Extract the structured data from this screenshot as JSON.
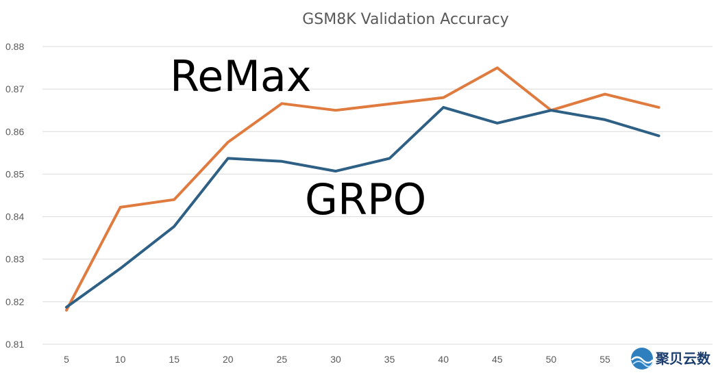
{
  "chart_data": {
    "type": "line",
    "title": "GSM8K Validation Accuracy",
    "xlabel": "",
    "ylabel": "",
    "x": [
      5,
      10,
      15,
      20,
      25,
      30,
      35,
      40,
      45,
      50,
      55,
      60
    ],
    "x_tick_labels": [
      "5",
      "10",
      "15",
      "20",
      "25",
      "30",
      "35",
      "40",
      "45",
      "50",
      "55"
    ],
    "y_tick_labels": [
      "0.81",
      "0.82",
      "0.83",
      "0.84",
      "0.85",
      "0.86",
      "0.87",
      "0.88"
    ],
    "ylim": [
      0.81,
      0.88
    ],
    "grid": "horizontal",
    "legend": "none",
    "series": [
      {
        "name": "ReMax",
        "color": "#e07b3f",
        "values": [
          0.818,
          0.8422,
          0.844,
          0.8575,
          0.8666,
          0.865,
          0.8665,
          0.868,
          0.875,
          0.865,
          0.8688,
          0.8657
        ]
      },
      {
        "name": "GRPO",
        "color": "#2e5f85",
        "values": [
          0.8187,
          0.8278,
          0.8377,
          0.8537,
          0.853,
          0.8507,
          0.8537,
          0.8657,
          0.862,
          0.865,
          0.8628,
          0.859
        ]
      }
    ],
    "annotations": [
      "ReMax",
      "GRPO"
    ]
  },
  "watermark": {
    "text": "聚贝云数",
    "color": "#1a3d6e"
  }
}
